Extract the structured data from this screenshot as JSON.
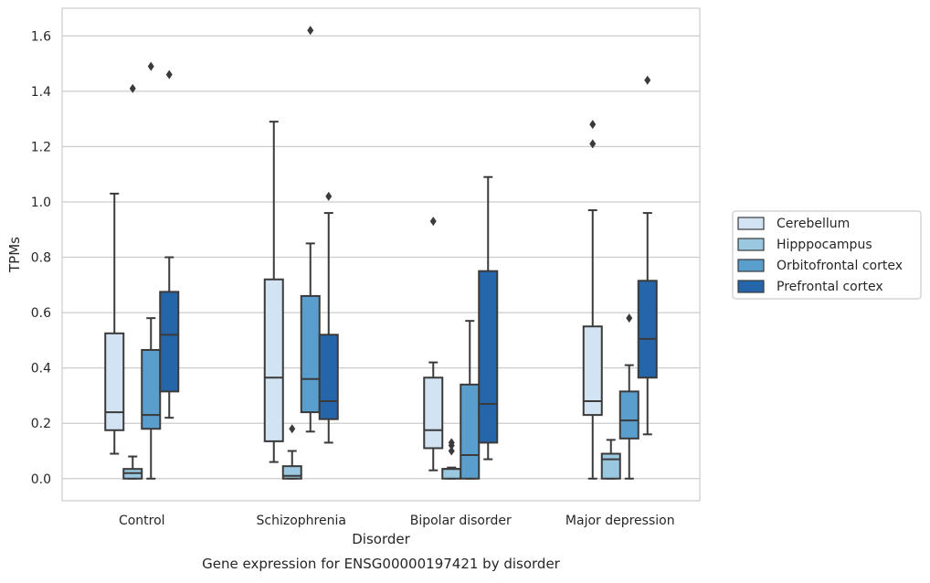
{
  "chart_data": {
    "type": "box",
    "categories": [
      "Control",
      "Schizophrenia",
      "Bipolar disorder",
      "Major depression"
    ],
    "xlabel": "Disorder",
    "ylabel": "TPMs",
    "caption": "Gene expression for ENSG00000197421 by disorder",
    "ylim": [
      -0.08,
      1.7
    ],
    "yticks": [
      "0.0",
      "0.2",
      "0.4",
      "0.6",
      "0.8",
      "1.0",
      "1.2",
      "1.4",
      "1.6"
    ],
    "grid": true,
    "legend_position": "right",
    "series": [
      {
        "name": "Cerebellum",
        "color": "#d2e3f3",
        "boxes": [
          {
            "min": 0.09,
            "q1": 0.175,
            "median": 0.24,
            "q3": 0.525,
            "max": 1.03,
            "outliers": []
          },
          {
            "min": 0.06,
            "q1": 0.135,
            "median": 0.365,
            "q3": 0.72,
            "max": 1.29,
            "outliers": []
          },
          {
            "min": 0.03,
            "q1": 0.11,
            "median": 0.175,
            "q3": 0.365,
            "max": 0.42,
            "outliers": [
              0.93
            ]
          },
          {
            "min": 0.0,
            "q1": 0.23,
            "median": 0.28,
            "q3": 0.55,
            "max": 0.97,
            "outliers": [
              1.21,
              1.28
            ]
          }
        ]
      },
      {
        "name": "Hipppocampus",
        "color": "#9ac8e0",
        "boxes": [
          {
            "min": 0.0,
            "q1": 0.0,
            "median": 0.02,
            "q3": 0.035,
            "max": 0.08,
            "outliers": [
              1.41
            ]
          },
          {
            "min": 0.0,
            "q1": 0.0,
            "median": 0.01,
            "q3": 0.045,
            "max": 0.1,
            "outliers": [
              0.18
            ]
          },
          {
            "min": 0.0,
            "q1": 0.0,
            "median": 0.035,
            "q3": 0.035,
            "max": 0.04,
            "outliers": [
              0.1,
              0.12,
              0.13
            ]
          },
          {
            "min": 0.0,
            "q1": 0.0,
            "median": 0.07,
            "q3": 0.09,
            "max": 0.14,
            "outliers": []
          }
        ]
      },
      {
        "name": "Orbitofrontal cortex",
        "color": "#5a9ecd",
        "boxes": [
          {
            "min": 0.0,
            "q1": 0.18,
            "median": 0.23,
            "q3": 0.465,
            "max": 0.58,
            "outliers": [
              1.49
            ]
          },
          {
            "min": 0.17,
            "q1": 0.24,
            "median": 0.36,
            "q3": 0.66,
            "max": 0.85,
            "outliers": [
              1.62
            ]
          },
          {
            "min": 0.0,
            "q1": 0.0,
            "median": 0.085,
            "q3": 0.34,
            "max": 0.57,
            "outliers": []
          },
          {
            "min": 0.0,
            "q1": 0.145,
            "median": 0.21,
            "q3": 0.315,
            "max": 0.41,
            "outliers": [
              0.58
            ]
          }
        ]
      },
      {
        "name": "Prefrontal cortex",
        "color": "#2565a9",
        "boxes": [
          {
            "min": 0.22,
            "q1": 0.315,
            "median": 0.52,
            "q3": 0.675,
            "max": 0.8,
            "outliers": [
              1.46
            ]
          },
          {
            "min": 0.13,
            "q1": 0.215,
            "median": 0.28,
            "q3": 0.52,
            "max": 0.96,
            "outliers": [
              1.02
            ]
          },
          {
            "min": 0.07,
            "q1": 0.13,
            "median": 0.27,
            "q3": 0.75,
            "max": 1.09,
            "outliers": []
          },
          {
            "min": 0.16,
            "q1": 0.365,
            "median": 0.505,
            "q3": 0.715,
            "max": 0.96,
            "outliers": [
              1.44
            ]
          }
        ]
      }
    ]
  }
}
